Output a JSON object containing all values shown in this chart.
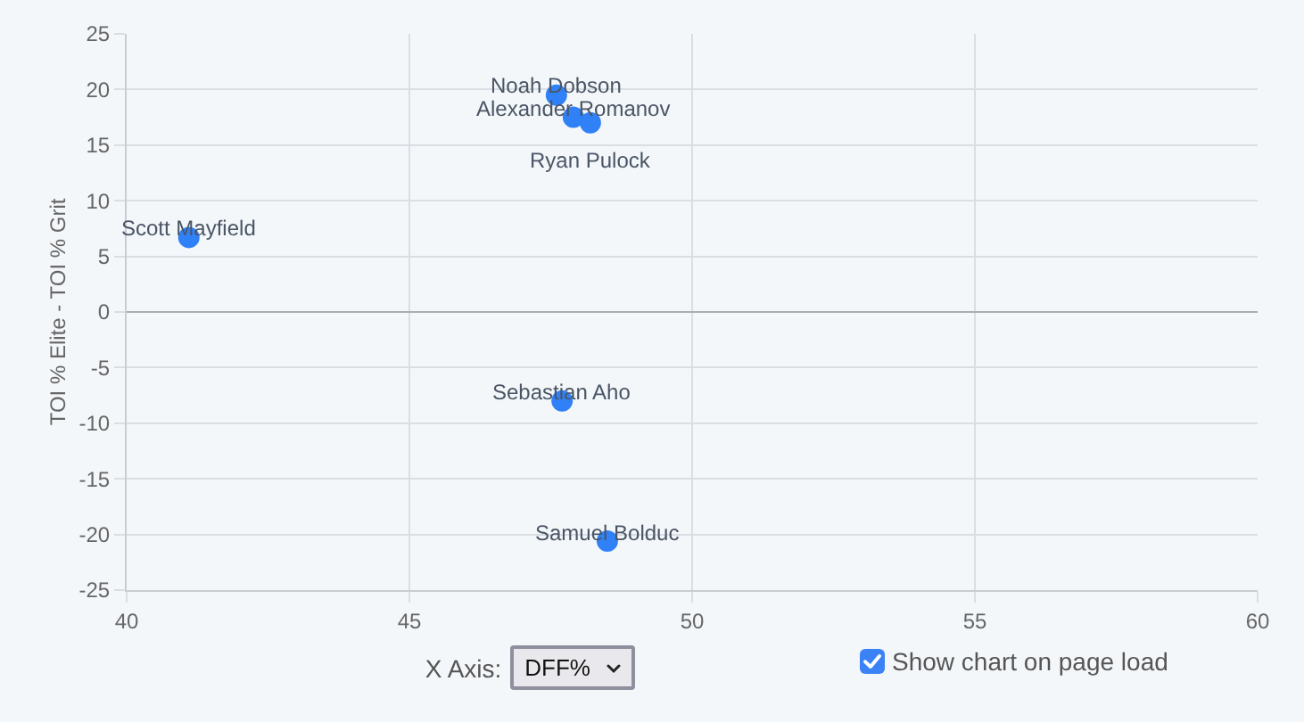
{
  "chart_data": {
    "type": "scatter",
    "xlabel": "DFF%",
    "ylabel": "TOI % Elite - TOI % Grit",
    "annotations": [
      "X Axis:",
      "Show chart on page load"
    ],
    "xlim": [
      40,
      60
    ],
    "xticks": [
      40,
      45,
      50,
      55,
      60
    ],
    "ylim": [
      -25,
      25
    ],
    "yticks": [
      -25,
      -20,
      -15,
      -10,
      -5,
      0,
      5,
      10,
      15,
      20,
      25
    ],
    "grid": true,
    "legend": false,
    "marker": "circle",
    "series": [
      {
        "name": "Noah Dobson",
        "color": "#3081f7",
        "x": [
          47.6
        ],
        "values": [
          19.5
        ]
      },
      {
        "name": "Alexander Romanov",
        "color": "#3081f7",
        "x": [
          47.9
        ],
        "values": [
          17.5
        ]
      },
      {
        "name": "Ryan Pulock",
        "color": "#3081f7",
        "x": [
          48.2
        ],
        "values": [
          17.0
        ]
      },
      {
        "name": "Scott Mayfield",
        "color": "#3081f7",
        "x": [
          41.1
        ],
        "values": [
          6.7
        ]
      },
      {
        "name": "Sebastian Aho",
        "color": "#3081f7",
        "x": [
          47.7
        ],
        "values": [
          -8.0
        ]
      },
      {
        "name": "Samuel Bolduc",
        "color": "#3081f7",
        "x": [
          48.5
        ],
        "values": [
          -20.6
        ]
      }
    ]
  }
}
